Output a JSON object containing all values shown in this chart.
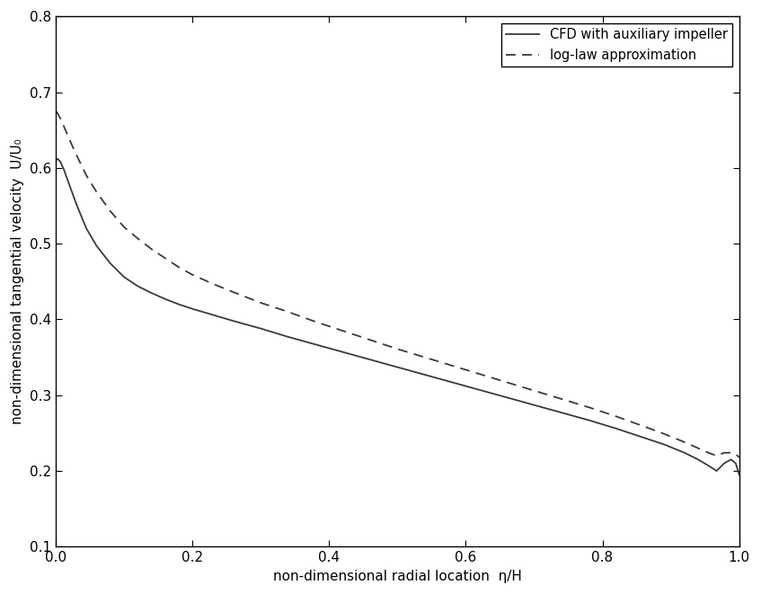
{
  "xlabel": "non-dimensional radial location  η/H",
  "ylabel": "non-dimensional tangential velocity  U/U₀",
  "xlim": [
    0,
    1.0
  ],
  "ylim": [
    0.1,
    0.8
  ],
  "xticks": [
    0,
    0.2,
    0.4,
    0.6,
    0.8,
    1.0
  ],
  "yticks": [
    0.1,
    0.2,
    0.3,
    0.4,
    0.5,
    0.6,
    0.7,
    0.8
  ],
  "legend_labels": [
    "CFD with auxiliary impeller",
    "log-law approximation"
  ],
  "line_color": "#3a3a3a",
  "background_color": "#ffffff",
  "cfd_x": [
    0.0,
    0.003,
    0.007,
    0.012,
    0.02,
    0.03,
    0.045,
    0.06,
    0.08,
    0.1,
    0.12,
    0.14,
    0.16,
    0.18,
    0.2,
    0.23,
    0.26,
    0.3,
    0.34,
    0.38,
    0.42,
    0.46,
    0.5,
    0.54,
    0.58,
    0.62,
    0.66,
    0.7,
    0.74,
    0.78,
    0.82,
    0.86,
    0.89,
    0.92,
    0.94,
    0.955,
    0.967,
    0.978,
    0.988,
    0.995,
    1.0
  ],
  "cfd_y": [
    0.61,
    0.612,
    0.608,
    0.598,
    0.578,
    0.553,
    0.52,
    0.497,
    0.474,
    0.456,
    0.444,
    0.435,
    0.427,
    0.42,
    0.414,
    0.406,
    0.398,
    0.388,
    0.377,
    0.367,
    0.357,
    0.347,
    0.337,
    0.327,
    0.317,
    0.307,
    0.297,
    0.287,
    0.277,
    0.267,
    0.256,
    0.244,
    0.235,
    0.224,
    0.215,
    0.207,
    0.2,
    0.21,
    0.215,
    0.21,
    0.195
  ],
  "log_x": [
    0.0,
    0.003,
    0.007,
    0.012,
    0.02,
    0.03,
    0.045,
    0.06,
    0.08,
    0.1,
    0.12,
    0.14,
    0.16,
    0.18,
    0.2,
    0.23,
    0.26,
    0.3,
    0.34,
    0.38,
    0.42,
    0.46,
    0.5,
    0.54,
    0.58,
    0.62,
    0.66,
    0.7,
    0.74,
    0.78,
    0.82,
    0.86,
    0.89,
    0.92,
    0.94,
    0.955,
    0.967,
    0.978,
    0.988,
    0.995,
    1.0
  ],
  "log_y": [
    0.675,
    0.672,
    0.665,
    0.655,
    0.638,
    0.618,
    0.59,
    0.568,
    0.543,
    0.522,
    0.507,
    0.493,
    0.481,
    0.469,
    0.459,
    0.447,
    0.436,
    0.422,
    0.41,
    0.397,
    0.385,
    0.373,
    0.361,
    0.35,
    0.339,
    0.328,
    0.317,
    0.306,
    0.295,
    0.284,
    0.272,
    0.259,
    0.249,
    0.238,
    0.23,
    0.224,
    0.22,
    0.224,
    0.224,
    0.222,
    0.218
  ]
}
